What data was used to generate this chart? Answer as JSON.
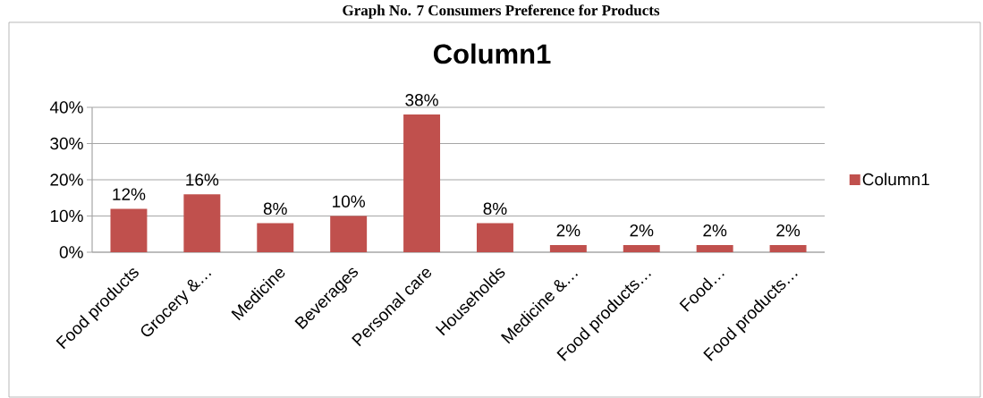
{
  "chart_data": {
    "type": "bar",
    "title": "Column1",
    "subtitle": "Graph No. 7 Consumers Preference for Products",
    "categories": [
      "Food products",
      "Grocery &…",
      "Medicine",
      "Beverages",
      "Personal care",
      "Households",
      "Medicine &…",
      "Food products…",
      "Food…",
      "Food products…"
    ],
    "series": [
      {
        "name": "Column1",
        "color": "#c0504d",
        "values": [
          12,
          16,
          8,
          10,
          38,
          8,
          2,
          2,
          2,
          2
        ]
      }
    ],
    "value_labels": [
      "12%",
      "16%",
      "8%",
      "10%",
      "38%",
      "8%",
      "2%",
      "2%",
      "2%",
      "2%"
    ],
    "ylim": [
      0,
      40
    ],
    "yticks": [
      {
        "value": 0,
        "label": "0%"
      },
      {
        "value": 10,
        "label": "10%"
      },
      {
        "value": 20,
        "label": "20%"
      },
      {
        "value": 30,
        "label": "30%"
      },
      {
        "value": 40,
        "label": "40%"
      }
    ],
    "grid": "y",
    "legend": "right"
  }
}
